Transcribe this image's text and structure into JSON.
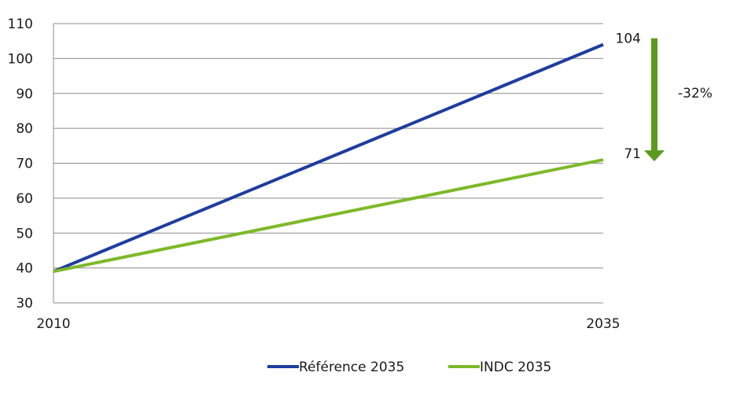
{
  "colors": {
    "reference": "#1f3d9e",
    "indc": "#7db928",
    "arrow": "#5c9a1e",
    "grid": "#8c8c8c"
  },
  "chart_data": {
    "type": "line",
    "x": [
      "2010",
      "2035"
    ],
    "xlim": [
      2010,
      2035
    ],
    "ylim": [
      30,
      110
    ],
    "yticks": [
      "30",
      "40",
      "50",
      "60",
      "70",
      "80",
      "90",
      "100",
      "110"
    ],
    "grid": true,
    "legend_position": "bottom",
    "series": [
      {
        "name": "Référence 2035",
        "x": [
          2010,
          2035
        ],
        "values": [
          39,
          104
        ],
        "color_key": "reference"
      },
      {
        "name": "INDC 2035",
        "x": [
          2010,
          2035
        ],
        "values": [
          39,
          71
        ],
        "color_key": "indc"
      }
    ],
    "end_labels": [
      "104",
      "71"
    ],
    "annotation": {
      "from": 104,
      "to": 71,
      "text": "-32%"
    }
  }
}
